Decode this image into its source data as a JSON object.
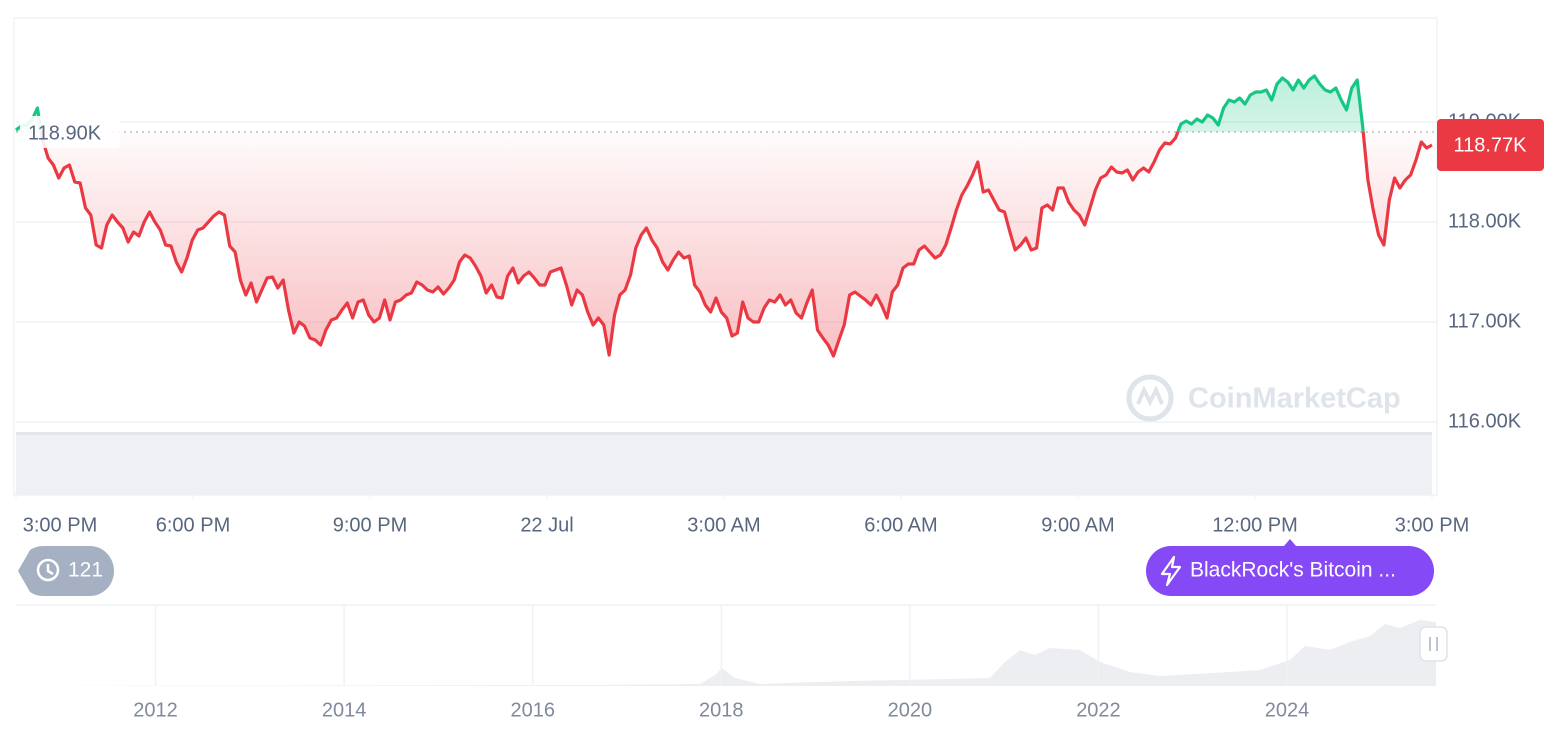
{
  "chart_data": {
    "type": "line",
    "xlim": [
      0,
      24
    ],
    "xticks": [
      {
        "value": 0,
        "label": "3:00 PM"
      },
      {
        "value": 3,
        "label": "6:00 PM"
      },
      {
        "value": 6,
        "label": "9:00 PM"
      },
      {
        "value": 9,
        "label": "22 Jul"
      },
      {
        "value": 12,
        "label": "3:00 AM"
      },
      {
        "value": 15,
        "label": "6:00 AM"
      },
      {
        "value": 18,
        "label": "9:00 AM"
      },
      {
        "value": 21,
        "label": "12:00 PM"
      },
      {
        "value": 24,
        "label": "3:00 PM"
      }
    ],
    "ylim": [
      116,
      120.04
    ],
    "yticks": [
      {
        "value": 116,
        "label": "116.00K"
      },
      {
        "value": 117,
        "label": "117.00K"
      },
      {
        "value": 118,
        "label": "118.00K"
      },
      {
        "value": 119,
        "label": "119.00K"
      }
    ],
    "grid": true,
    "baseline": {
      "value": 118.9,
      "label": "118.90K"
    },
    "last_price": {
      "value": 118.77,
      "label": "118.77K"
    },
    "colors": {
      "up": "#16c784",
      "down": "#ea3943"
    },
    "values": [
      118.92,
      118.96,
      118.97,
      119.02,
      119.14,
      118.82,
      118.64,
      118.57,
      118.44,
      118.54,
      118.57,
      118.4,
      118.39,
      118.14,
      118.07,
      117.77,
      117.74,
      117.97,
      118.07,
      118.0,
      117.94,
      117.8,
      117.9,
      117.86,
      118.0,
      118.1,
      118.0,
      117.92,
      117.77,
      117.76,
      117.6,
      117.5,
      117.64,
      117.82,
      117.92,
      117.94,
      118.0,
      118.06,
      118.1,
      118.07,
      117.76,
      117.7,
      117.42,
      117.27,
      117.39,
      117.2,
      117.32,
      117.44,
      117.45,
      117.34,
      117.42,
      117.12,
      116.89,
      117.0,
      116.96,
      116.84,
      116.82,
      116.77,
      116.92,
      117.02,
      117.04,
      117.12,
      117.19,
      117.04,
      117.2,
      117.22,
      117.07,
      117.0,
      117.04,
      117.22,
      117.02,
      117.2,
      117.22,
      117.27,
      117.29,
      117.4,
      117.37,
      117.32,
      117.3,
      117.35,
      117.28,
      117.34,
      117.42,
      117.6,
      117.67,
      117.64,
      117.56,
      117.46,
      117.29,
      117.37,
      117.25,
      117.24,
      117.46,
      117.54,
      117.39,
      117.46,
      117.5,
      117.44,
      117.37,
      117.37,
      117.5,
      117.52,
      117.54,
      117.37,
      117.17,
      117.32,
      117.27,
      117.1,
      116.97,
      117.04,
      116.97,
      116.67,
      117.07,
      117.27,
      117.32,
      117.47,
      117.74,
      117.87,
      117.94,
      117.82,
      117.74,
      117.6,
      117.52,
      117.62,
      117.7,
      117.64,
      117.66,
      117.37,
      117.3,
      117.17,
      117.1,
      117.24,
      117.1,
      117.04,
      116.86,
      116.89,
      117.2,
      117.04,
      117.0,
      117.0,
      117.14,
      117.22,
      117.2,
      117.27,
      117.17,
      117.22,
      117.09,
      117.04,
      117.19,
      117.32,
      116.92,
      116.84,
      116.77,
      116.66,
      116.82,
      116.97,
      117.27,
      117.3,
      117.26,
      117.22,
      117.17,
      117.27,
      117.17,
      117.04,
      117.3,
      117.37,
      117.54,
      117.58,
      117.58,
      117.72,
      117.76,
      117.7,
      117.64,
      117.67,
      117.77,
      117.94,
      118.12,
      118.27,
      118.36,
      118.47,
      118.6,
      118.3,
      118.32,
      118.22,
      118.12,
      118.1,
      117.9,
      117.72,
      117.77,
      117.84,
      117.72,
      117.74,
      118.14,
      118.17,
      118.12,
      118.34,
      118.34,
      118.2,
      118.12,
      118.07,
      117.97,
      118.14,
      118.32,
      118.44,
      118.47,
      118.55,
      118.5,
      118.49,
      118.52,
      118.42,
      118.5,
      118.54,
      118.5,
      118.6,
      118.72,
      118.79,
      118.78,
      118.84,
      118.98,
      119.01,
      118.98,
      119.03,
      119.0,
      119.07,
      119.04,
      118.97,
      119.14,
      119.22,
      119.2,
      119.24,
      119.18,
      119.27,
      119.3,
      119.3,
      119.32,
      119.22,
      119.38,
      119.44,
      119.4,
      119.32,
      119.42,
      119.34,
      119.42,
      119.46,
      119.38,
      119.32,
      119.3,
      119.34,
      119.22,
      119.12,
      119.34,
      119.42,
      118.97,
      118.42,
      118.12,
      117.87,
      117.77,
      118.22,
      118.44,
      118.34,
      118.42,
      118.47,
      118.62,
      118.8,
      118.74,
      118.77
    ]
  },
  "watermark": "CoinMarketCap",
  "history_count": 121,
  "event": "BlackRock's Bitcoin ...",
  "navigator": {
    "xlim": [
      2010.52,
      2025.58
    ],
    "xticks": [
      2012,
      2014,
      2016,
      2018,
      2020,
      2022,
      2024
    ]
  }
}
